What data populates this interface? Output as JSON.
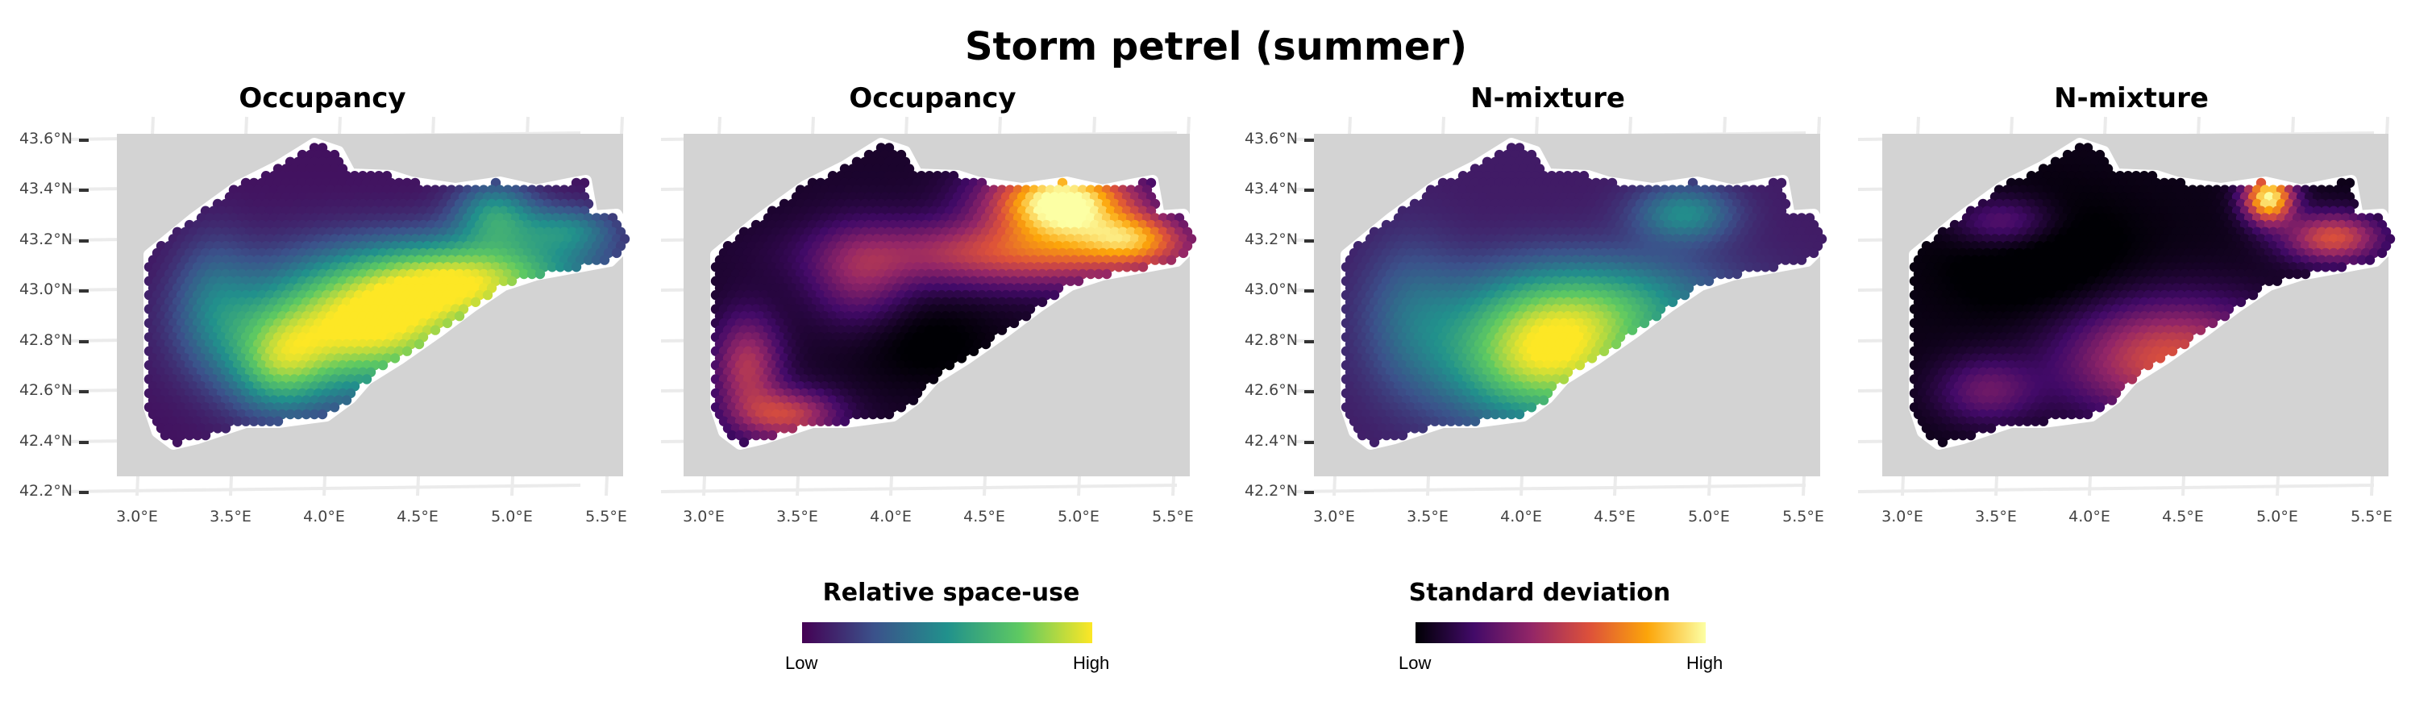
{
  "title": "Storm petrel (summer)",
  "panels": [
    {
      "title": "Occupancy",
      "colormap": "viridis",
      "show_y_labels": true
    },
    {
      "title": "Occupancy",
      "colormap": "inferno",
      "show_y_labels": false
    },
    {
      "title": "N-mixture",
      "colormap": "viridis",
      "show_y_labels": true
    },
    {
      "title": "N-mixture",
      "colormap": "inferno",
      "show_y_labels": false
    }
  ],
  "axes": {
    "y_ticks": [
      "43.6°N",
      "43.4°N",
      "43.2°N",
      "43.0°N",
      "42.8°N",
      "42.6°N",
      "42.4°N",
      "42.2°N"
    ],
    "x_ticks": [
      "3.0°E",
      "3.5°E",
      "4.0°E",
      "4.5°E",
      "5.0°E",
      "5.5°E"
    ]
  },
  "legends": [
    {
      "title": "Relative space-use",
      "low": "Low",
      "high": "High",
      "colormap": "viridis"
    },
    {
      "title": "Standard deviation",
      "low": "Low",
      "high": "High",
      "colormap": "inferno"
    }
  ],
  "colors": {
    "land": "#d3d3d3",
    "grid": "#ebebeb",
    "background": "#ffffff",
    "viridis": [
      "#440154",
      "#3b528b",
      "#21918c",
      "#5ec962",
      "#fde725"
    ],
    "inferno": [
      "#000004",
      "#420a68",
      "#932667",
      "#dd513a",
      "#fca50a",
      "#fcffa4"
    ]
  }
}
